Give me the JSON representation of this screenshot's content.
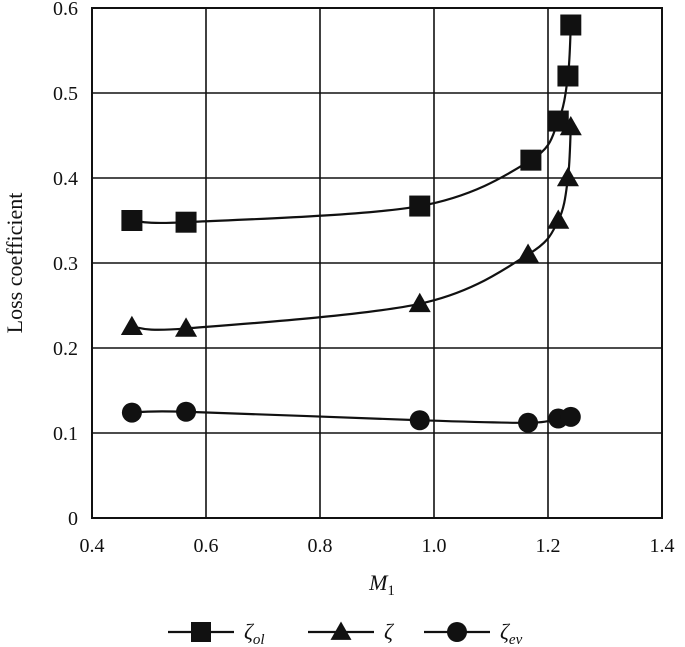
{
  "chart_data": {
    "type": "line",
    "xlabel": "M",
    "xlabel_sub": "1",
    "ylabel": "Loss coefficient",
    "xlim": [
      0.4,
      1.4
    ],
    "ylim": [
      0,
      0.6
    ],
    "x_ticks": [
      "0.4",
      "0.6",
      "0.8",
      "1.0",
      "1.2",
      "1.4"
    ],
    "y_ticks": [
      "0",
      "0.1",
      "0.2",
      "0.3",
      "0.4",
      "0.5",
      "0.6"
    ],
    "grid": true,
    "legend_position": "bottom",
    "series": [
      {
        "name": "ζ",
        "name_sub": "ol",
        "marker": "square",
        "points": [
          [
            0.47,
            0.35
          ],
          [
            0.565,
            0.348
          ],
          [
            0.975,
            0.367
          ],
          [
            1.17,
            0.421
          ],
          [
            1.218,
            0.467
          ],
          [
            1.235,
            0.52
          ],
          [
            1.24,
            0.58
          ]
        ]
      },
      {
        "name": "ζ",
        "name_sub": "",
        "marker": "triangle",
        "points": [
          [
            0.47,
            0.225
          ],
          [
            0.565,
            0.223
          ],
          [
            0.975,
            0.252
          ],
          [
            1.165,
            0.31
          ],
          [
            1.218,
            0.35
          ],
          [
            1.235,
            0.4
          ],
          [
            1.24,
            0.46
          ]
        ]
      },
      {
        "name": "ζ",
        "name_sub": "ev",
        "marker": "circle",
        "points": [
          [
            0.47,
            0.124
          ],
          [
            0.565,
            0.125
          ],
          [
            0.975,
            0.115
          ],
          [
            1.165,
            0.112
          ],
          [
            1.218,
            0.117
          ],
          [
            1.24,
            0.119
          ]
        ]
      }
    ]
  }
}
